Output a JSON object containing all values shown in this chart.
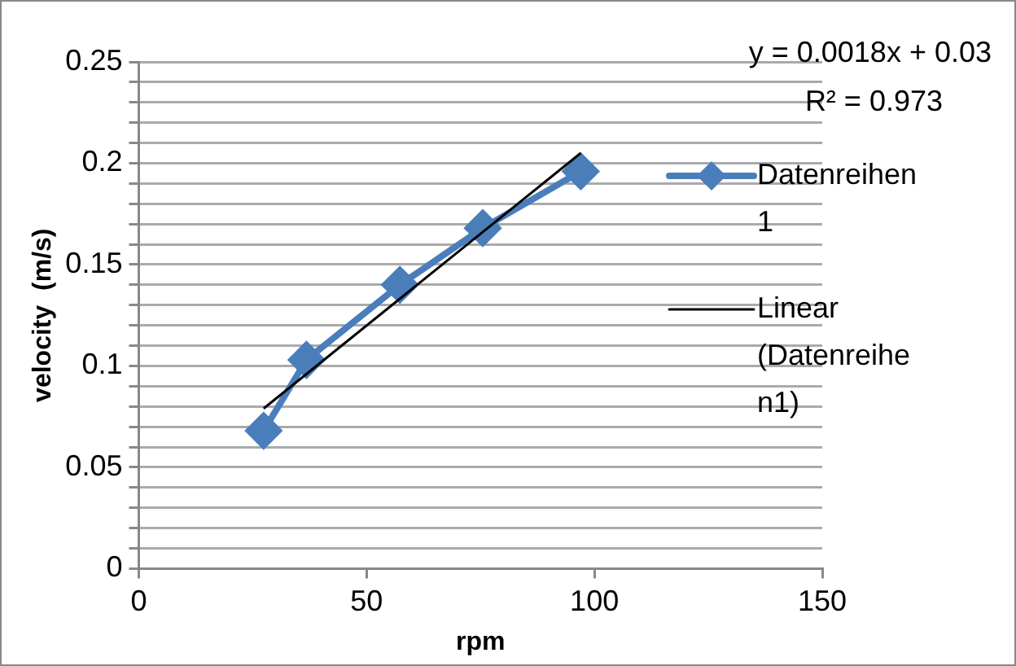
{
  "chart_data": {
    "type": "line",
    "xlabel": "rpm",
    "ylabel": "velocity  (m/s)",
    "annotations": [
      "y = 0.0018x + 0.03",
      "R² = 0.973"
    ],
    "xlim": [
      0,
      150
    ],
    "xticks": [
      0,
      50,
      100,
      150
    ],
    "ylim": [
      0,
      0.25
    ],
    "yticks": [
      0,
      {
        "value": 0.01,
        "label": null
      },
      {
        "value": 0.02,
        "label": null
      },
      {
        "value": 0.03,
        "label": null
      },
      {
        "value": 0.04,
        "label": null
      },
      0.05,
      {
        "value": 0.06,
        "label": null
      },
      {
        "value": 0.07,
        "label": null
      },
      {
        "value": 0.08,
        "label": null
      },
      {
        "value": 0.09,
        "label": null
      },
      0.1,
      {
        "value": 0.11,
        "label": null
      },
      {
        "value": 0.12,
        "label": null
      },
      {
        "value": 0.13,
        "label": null
      },
      {
        "value": 0.14,
        "label": null
      },
      0.15,
      {
        "value": 0.16,
        "label": null
      },
      {
        "value": 0.17,
        "label": null
      },
      {
        "value": 0.18,
        "label": null
      },
      {
        "value": 0.19,
        "label": null
      },
      0.2,
      {
        "value": 0.21,
        "label": null
      },
      {
        "value": 0.22,
        "label": null
      },
      {
        "value": 0.23,
        "label": null
      },
      {
        "value": 0.24,
        "label": null
      },
      0.25
    ],
    "grid": "y",
    "legend": "right",
    "series": [
      {
        "name": "Datenreihen 1",
        "color": "#4a7ebb",
        "marker": "diamond",
        "x": [
          27.4,
          36.8,
          57.3,
          75.5,
          97.0
        ],
        "values": [
          0.068,
          0.103,
          0.14,
          0.168,
          0.196
        ]
      },
      {
        "name": "Linear (Datenreihen1)",
        "color": "#000000",
        "marker": "none",
        "x": [
          27.4,
          97.0
        ],
        "values": [
          0.079,
          0.205
        ]
      }
    ]
  }
}
